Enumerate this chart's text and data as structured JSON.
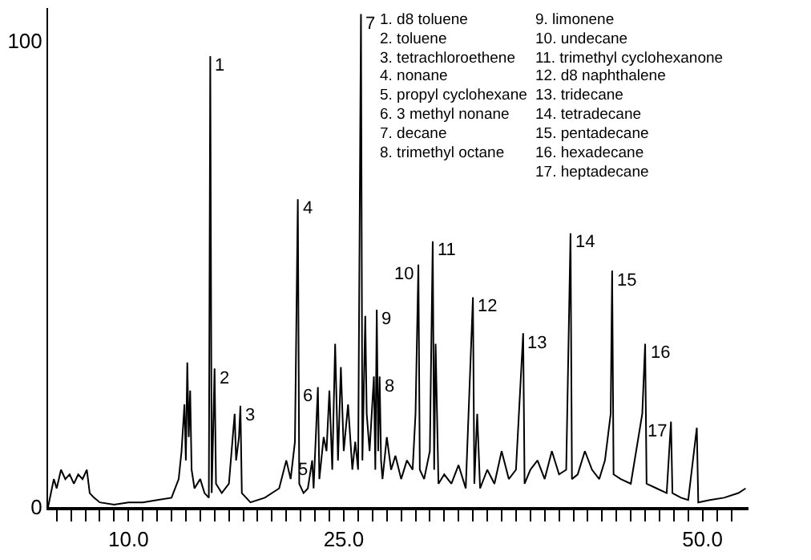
{
  "chart_data": {
    "type": "line",
    "color": "#000000",
    "x": [
      4.4,
      4.6,
      4.8,
      5.0,
      5.3,
      5.6,
      5.9,
      6.2,
      6.5,
      6.8,
      7.1,
      7.3,
      7.6,
      8.0,
      9,
      10,
      11,
      12,
      13,
      13.5,
      13.7,
      13.9,
      14.0,
      14.1,
      14.2,
      14.3,
      14.4,
      14.6,
      15.0,
      15.3,
      15.6,
      15.7,
      15.8,
      15.9,
      16.0,
      16.1,
      16.5,
      17.0,
      17.4,
      17.5,
      17.7,
      17.8,
      17.9,
      18.5,
      19.5,
      20.5,
      21.0,
      21.3,
      21.6,
      21.8,
      21.9,
      22.2,
      22.5,
      22.8,
      22.9,
      23.2,
      23.3,
      23.6,
      23.8,
      24.0,
      24.2,
      24.4,
      24.6,
      24.8,
      25.0,
      25.3,
      25.6,
      25.8,
      26.0,
      26.2,
      26.3,
      26.5,
      26.6,
      26.8,
      27.1,
      27.2,
      27.3,
      27.4,
      27.5,
      27.6,
      27.7,
      28.0,
      28.3,
      28.6,
      29.0,
      29.4,
      29.8,
      30.0,
      30.2,
      30.3,
      30.6,
      31.0,
      31.2,
      31.3,
      31.4,
      31.6,
      32.0,
      32.5,
      33.0,
      33.5,
      34.0,
      34.1,
      34.3,
      34.5,
      35.0,
      35.5,
      36.0,
      36.5,
      37.0,
      37.5,
      37.6,
      38.0,
      38.5,
      39.0,
      39.5,
      40.0,
      40.5,
      40.8,
      40.9,
      41.3,
      41.8,
      42.3,
      42.8,
      43.2,
      43.6,
      43.7,
      43.8,
      44.3,
      45.0,
      45.8,
      46.0,
      46.1,
      46.8,
      47.5,
      47.8,
      47.9,
      48.5,
      49.0,
      49.6,
      49.7,
      50.5,
      51.5,
      52.5,
      53.0
    ],
    "values": [
      0,
      3,
      6,
      4,
      8,
      6,
      7,
      5,
      7,
      6,
      8,
      3,
      2,
      1,
      0.5,
      1,
      1,
      1.5,
      2,
      6,
      12,
      22,
      10,
      31,
      15,
      25,
      8,
      4,
      6,
      3,
      2,
      96.7,
      3,
      16,
      29.7,
      5,
      3,
      5,
      20,
      10,
      15,
      21.7,
      3,
      1,
      2,
      4,
      10,
      6,
      14,
      66,
      5,
      3,
      4,
      10,
      4,
      25.7,
      6,
      15,
      12,
      25,
      8,
      35,
      10,
      30,
      12,
      22,
      8,
      14,
      8,
      105.7,
      10,
      41,
      20,
      12,
      28,
      8,
      42.3,
      12,
      28,
      10,
      6,
      15,
      8,
      11,
      6,
      10,
      8,
      20,
      52,
      8,
      6,
      12,
      57,
      8,
      35,
      5,
      7,
      5,
      9,
      4,
      45,
      5,
      20,
      4,
      8,
      5,
      12,
      6,
      8,
      37.3,
      5,
      8,
      10,
      6,
      12,
      7,
      8,
      58.7,
      6,
      7,
      12,
      8,
      6,
      10,
      20,
      50.7,
      7,
      6,
      5,
      20,
      35,
      5,
      4,
      3,
      18.3,
      3,
      2,
      1.5,
      17,
      1,
      1.5,
      2,
      3,
      4
    ],
    "xlim": [
      4.4,
      53.2
    ],
    "ylim": [
      0,
      107
    ],
    "xticks": [
      {
        "value": 5,
        "label": null
      },
      {
        "value": 6,
        "label": null
      },
      {
        "value": 7,
        "label": null
      },
      {
        "value": 8,
        "label": null
      },
      {
        "value": 9,
        "label": null
      },
      {
        "value": 10,
        "label": "10.0"
      },
      {
        "value": 11,
        "label": null
      },
      {
        "value": 12,
        "label": null
      },
      {
        "value": 13,
        "label": null
      },
      {
        "value": 14,
        "label": null
      },
      {
        "value": 15,
        "label": null
      },
      {
        "value": 16,
        "label": null
      },
      {
        "value": 17,
        "label": null
      },
      {
        "value": 18,
        "label": null
      },
      {
        "value": 19,
        "label": null
      },
      {
        "value": 20,
        "label": null
      },
      {
        "value": 21,
        "label": null
      },
      {
        "value": 22,
        "label": null
      },
      {
        "value": 23,
        "label": null
      },
      {
        "value": 24,
        "label": null
      },
      {
        "value": 25,
        "label": "25.0"
      },
      {
        "value": 26,
        "label": null
      },
      {
        "value": 27,
        "label": null
      },
      {
        "value": 28,
        "label": null
      },
      {
        "value": 29,
        "label": null
      },
      {
        "value": 30,
        "label": null
      },
      {
        "value": 31,
        "label": null
      },
      {
        "value": 32,
        "label": null
      },
      {
        "value": 33,
        "label": null
      },
      {
        "value": 34,
        "label": null
      },
      {
        "value": 35,
        "label": null
      },
      {
        "value": 36,
        "label": null
      },
      {
        "value": 37,
        "label": null
      },
      {
        "value": 38,
        "label": null
      },
      {
        "value": 39,
        "label": null
      },
      {
        "value": 40,
        "label": null
      },
      {
        "value": 41,
        "label": null
      },
      {
        "value": 42,
        "label": null
      },
      {
        "value": 43,
        "label": null
      },
      {
        "value": 44,
        "label": null
      },
      {
        "value": 45,
        "label": null
      },
      {
        "value": 46,
        "label": null
      },
      {
        "value": 47,
        "label": null
      },
      {
        "value": 48,
        "label": null
      },
      {
        "value": 49,
        "label": null
      },
      {
        "value": 50,
        "label": "50.0"
      },
      {
        "value": 51,
        "label": null
      },
      {
        "value": 52,
        "label": null
      }
    ],
    "yticks": [
      0,
      100
    ],
    "legend": false,
    "marker": "none",
    "line_style": "solid",
    "annotations": [
      {
        "text": "1",
        "x": 15.7,
        "y": 96.7
      },
      {
        "text": "2",
        "x": 16.0,
        "y": 29.7
      },
      {
        "text": "3",
        "x": 17.8,
        "y": 21.7
      },
      {
        "text": "4",
        "x": 21.8,
        "y": 66
      },
      {
        "text": "5",
        "x": 22.8,
        "y": 10
      },
      {
        "text": "6",
        "x": 23.2,
        "y": 25.7
      },
      {
        "text": "7",
        "x": 26.2,
        "y": 105.7
      },
      {
        "text": "8",
        "x": 27.5,
        "y": 28
      },
      {
        "text": "9",
        "x": 27.3,
        "y": 42.3
      },
      {
        "text": "10",
        "x": 30.2,
        "y": 52
      },
      {
        "text": "11",
        "x": 31.2,
        "y": 57
      },
      {
        "text": "12",
        "x": 34.0,
        "y": 45
      },
      {
        "text": "13",
        "x": 37.5,
        "y": 37.3
      },
      {
        "text": "14",
        "x": 40.8,
        "y": 58.7
      },
      {
        "text": "15",
        "x": 43.7,
        "y": 50.7
      },
      {
        "text": "16",
        "x": 46.0,
        "y": 35
      },
      {
        "text": "17",
        "x": 47.8,
        "y": 18.3
      },
      "1. d8 toluene",
      "2. toluene",
      "3. tetrachloroethene",
      "4. nonane",
      "5. propyl cyclohexane",
      "6. 3 methyl nonane",
      "7. decane",
      "8. trimethyl octane",
      "9. limonene",
      "10. undecane",
      "11. trimethyl cyclohexanone",
      "12. d8 naphthalene",
      "13. tridecane",
      "14. tetradecane",
      "15. pentadecane",
      "16. hexadecane",
      "17. heptadecane"
    ]
  }
}
